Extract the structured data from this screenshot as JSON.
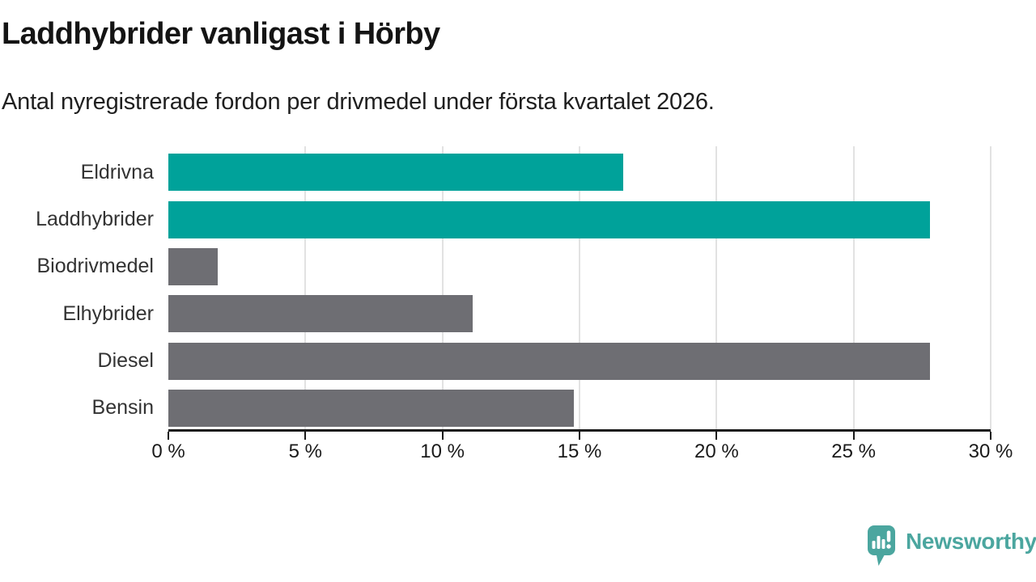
{
  "chart_data": {
    "type": "bar",
    "orientation": "horizontal",
    "title": "Laddhybrider vanligast i Hörby",
    "subtitle": "Antal nyregistrerade fordon per drivmedel under första kvartalet 2026.",
    "categories": [
      "Eldrivna",
      "Laddhybrider",
      "Biodrivmedel",
      "Elhybrider",
      "Diesel",
      "Bensin"
    ],
    "values": [
      16.6,
      27.8,
      1.8,
      11.1,
      27.8,
      14.8
    ],
    "unit": "%",
    "xlim": [
      0,
      30
    ],
    "xlabel": "",
    "ylabel": "",
    "grid": "vertical",
    "legend": "none",
    "xticks": [
      {
        "value": 0,
        "label": "0 %"
      },
      {
        "value": 5,
        "label": "5 %"
      },
      {
        "value": 10,
        "label": "10 %"
      },
      {
        "value": 15,
        "label": "15 %"
      },
      {
        "value": 20,
        "label": "20 %"
      },
      {
        "value": 25,
        "label": "25 %"
      },
      {
        "value": 30,
        "label": "30 %"
      }
    ],
    "bar_colors": [
      "#00a29a",
      "#00a29a",
      "#6e6e73",
      "#6e6e73",
      "#6e6e73",
      "#6e6e73"
    ],
    "highlight_color": "#00a29a",
    "base_color": "#6e6e73",
    "gridline_color": "#e2e2e2",
    "axis_color": "#1a1a1a"
  },
  "footer": {
    "brand": "Newsworthy",
    "brand_color": "#4ba69f"
  }
}
